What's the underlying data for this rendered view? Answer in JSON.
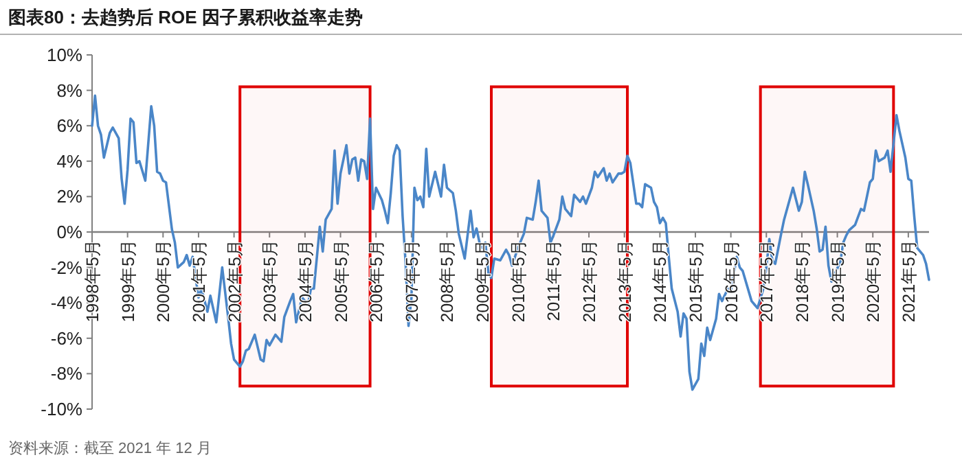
{
  "chart_data": {
    "type": "line",
    "title": "图表80：去趋势后 ROE 因子累积收益率走势",
    "annotations": [
      "资料来源：截至 2021 年 12 月"
    ],
    "x": [
      "1998-05",
      "1998-06",
      "1998-07",
      "1998-08",
      "1998-09",
      "1998-10",
      "1998-11",
      "1998-12",
      "1999-02",
      "1999-03",
      "1999-04",
      "1999-05",
      "1999-06",
      "1999-07",
      "1999-08",
      "1999-09",
      "1999-11",
      "2000-01",
      "2000-02",
      "2000-03",
      "2000-04",
      "2000-05",
      "2000-06",
      "2000-08",
      "2000-09",
      "2000-10",
      "2000-12",
      "2001-01",
      "2001-02",
      "2001-03",
      "2001-05",
      "2001-06",
      "2001-08",
      "2001-09",
      "2001-11",
      "2002-01",
      "2002-03",
      "2002-04",
      "2002-05",
      "2002-07",
      "2002-08",
      "2002-09",
      "2002-10",
      "2002-12",
      "2003-02",
      "2003-03",
      "2003-04",
      "2003-05",
      "2003-07",
      "2003-09",
      "2003-10",
      "2003-12",
      "2004-01",
      "2004-02",
      "2004-04",
      "2004-06",
      "2004-07",
      "2004-08",
      "2004-10",
      "2004-11",
      "2004-12",
      "2005-02",
      "2005-03",
      "2005-04",
      "2005-05",
      "2005-07",
      "2005-08",
      "2005-09",
      "2005-10",
      "2005-11",
      "2005-12",
      "2006-01",
      "2006-02",
      "2006-03",
      "2006-04",
      "2006-05",
      "2006-07",
      "2006-08",
      "2006-09",
      "2006-10",
      "2006-11",
      "2006-12",
      "2007-01",
      "2007-02",
      "2007-03",
      "2007-04",
      "2007-05",
      "2007-06",
      "2007-07",
      "2007-08",
      "2007-09",
      "2007-10",
      "2007-11",
      "2008-01",
      "2008-03",
      "2008-04",
      "2008-05",
      "2008-07",
      "2008-08",
      "2008-09",
      "2008-11",
      "2009-01",
      "2009-02",
      "2009-03",
      "2009-04",
      "2009-05",
      "2009-06",
      "2009-07",
      "2009-08",
      "2009-09",
      "2009-11",
      "2010-01",
      "2010-02",
      "2010-03",
      "2010-05",
      "2010-07",
      "2010-08",
      "2010-10",
      "2010-11",
      "2010-12",
      "2011-01",
      "2011-03",
      "2011-04",
      "2011-05",
      "2011-07",
      "2011-08",
      "2011-09",
      "2011-11",
      "2011-12",
      "2012-02",
      "2012-03",
      "2012-04",
      "2012-06",
      "2012-07",
      "2012-08",
      "2012-10",
      "2012-11",
      "2012-12",
      "2013-01",
      "2013-03",
      "2013-04",
      "2013-05",
      "2013-06",
      "2013-07",
      "2013-09",
      "2013-10",
      "2013-11",
      "2013-12",
      "2014-02",
      "2014-03",
      "2014-04",
      "2014-05",
      "2014-06",
      "2014-07",
      "2014-08",
      "2014-09",
      "2014-11",
      "2014-12",
      "2015-01",
      "2015-02",
      "2015-03",
      "2015-04",
      "2015-06",
      "2015-07",
      "2015-08",
      "2015-09",
      "2015-10",
      "2015-12",
      "2016-01",
      "2016-02",
      "2016-04",
      "2016-05",
      "2016-07",
      "2016-08",
      "2016-09",
      "2016-12",
      "2017-01",
      "2017-02",
      "2017-04",
      "2017-05",
      "2017-06",
      "2017-07",
      "2017-08",
      "2017-10",
      "2017-11",
      "2018-02",
      "2018-04",
      "2018-05",
      "2018-06",
      "2018-07",
      "2018-09",
      "2018-10",
      "2018-11",
      "2018-12",
      "2019-01",
      "2019-02",
      "2019-03",
      "2019-04",
      "2019-06",
      "2019-07",
      "2019-08",
      "2019-09",
      "2019-11",
      "2020-01",
      "2020-02",
      "2020-04",
      "2020-05",
      "2020-06",
      "2020-07",
      "2020-09",
      "2020-10",
      "2020-11",
      "2021-01",
      "2021-02",
      "2021-04",
      "2021-05",
      "2021-06",
      "2021-07",
      "2021-08",
      "2021-10",
      "2021-11",
      "2021-12"
    ],
    "series": [
      {
        "color": "#4a86c8",
        "values": [
          6.0,
          7.7,
          6.0,
          5.5,
          4.2,
          4.9,
          5.6,
          5.9,
          5.3,
          3.0,
          1.6,
          3.5,
          6.4,
          6.2,
          3.9,
          4.0,
          2.9,
          7.1,
          6.0,
          3.4,
          3.3,
          2.9,
          2.8,
          0.15,
          -0.6,
          -2.0,
          -1.7,
          -1.3,
          -1.9,
          -1.4,
          -3.7,
          -3.2,
          -4.5,
          -3.6,
          -5.1,
          -2.0,
          -4.8,
          -6.3,
          -7.2,
          -7.6,
          -7.3,
          -6.7,
          -6.6,
          -5.8,
          -7.2,
          -7.3,
          -6.1,
          -6.4,
          -5.8,
          -6.2,
          -4.8,
          -3.9,
          -3.5,
          -5.1,
          -3.7,
          -4.1,
          -3.2,
          -3.2,
          0.3,
          -1.1,
          0.7,
          1.3,
          4.6,
          1.6,
          3.3,
          4.9,
          3.3,
          4.1,
          4.2,
          2.9,
          4.1,
          4.0,
          3.0,
          6.4,
          1.3,
          2.5,
          1.8,
          1.2,
          0.5,
          2.2,
          4.3,
          4.9,
          4.6,
          0.9,
          -1.7,
          -5.3,
          -3.7,
          2.5,
          1.8,
          2.0,
          1.4,
          4.7,
          2.0,
          3.4,
          2.0,
          3.8,
          2.5,
          2.2,
          1.2,
          -0.1,
          -1.5,
          1.2,
          -0.3,
          0.2,
          -0.6,
          -0.9,
          -0.6,
          -2.3,
          -2.6,
          -1.5,
          -1.6,
          -1.0,
          -1.3,
          -1.9,
          -0.9,
          -0.1,
          0.8,
          0.7,
          1.7,
          2.9,
          1.2,
          0.8,
          -0.6,
          -0.2,
          0.7,
          2.0,
          1.3,
          0.9,
          2.1,
          1.7,
          2.0,
          1.6,
          2.5,
          3.4,
          3.1,
          3.6,
          2.9,
          3.3,
          2.8,
          3.3,
          3.3,
          3.4,
          4.3,
          3.9,
          1.6,
          1.6,
          1.4,
          2.7,
          2.5,
          1.7,
          1.4,
          0.5,
          0.8,
          0.5,
          -1.4,
          -3.2,
          -4.5,
          -5.9,
          -4.6,
          -4.9,
          -7.9,
          -8.9,
          -8.3,
          -6.3,
          -7.0,
          -5.4,
          -6.1,
          -4.9,
          -3.5,
          -3.9,
          -3.2,
          -3.3,
          -1.4,
          -2.0,
          -2.2,
          -3.9,
          -4.1,
          -4.3,
          -3.2,
          -2.0,
          -0.4,
          -1.6,
          -1.8,
          -0.1,
          0.7,
          2.5,
          1.2,
          1.7,
          3.4,
          2.7,
          1.2,
          0.2,
          -1.1,
          -1.0,
          0.3,
          -1.9,
          -2.8,
          -2.4,
          -1.7,
          -0.6,
          -0.2,
          0.1,
          0.4,
          1.3,
          1.2,
          2.8,
          3.0,
          4.6,
          4.0,
          4.2,
          4.6,
          3.4,
          6.6,
          5.7,
          4.2,
          3.0,
          2.9,
          0.9,
          -0.9,
          -1.3,
          -1.8,
          -2.7
        ]
      }
    ],
    "xlim": [
      "1998-05",
      "2021-12"
    ],
    "xticks": [
      {
        "value": "1998-05",
        "label": "1998年5月"
      },
      {
        "value": "1999-05",
        "label": "1999年5月"
      },
      {
        "value": "2000-05",
        "label": "2000年5月"
      },
      {
        "value": "2001-05",
        "label": "2001年5月"
      },
      {
        "value": "2002-05",
        "label": "2002年5月"
      },
      {
        "value": "2003-05",
        "label": "2003年5月"
      },
      {
        "value": "2004-05",
        "label": "2004年5月"
      },
      {
        "value": "2005-05",
        "label": "2005年5月"
      },
      {
        "value": "2006-05",
        "label": "2006年5月"
      },
      {
        "value": "2007-05",
        "label": "2007年5月"
      },
      {
        "value": "2008-05",
        "label": "2008年5月"
      },
      {
        "value": "2009-05",
        "label": "2009年5月"
      },
      {
        "value": "2010-05",
        "label": "2010年5月"
      },
      {
        "value": "2011-05",
        "label": "2011年5月"
      },
      {
        "value": "2012-05",
        "label": "2012年5月"
      },
      {
        "value": "2013-05",
        "label": "2013年5月"
      },
      {
        "value": "2014-05",
        "label": "2014年5月"
      },
      {
        "value": "2015-05",
        "label": "2015年5月"
      },
      {
        "value": "2016-05",
        "label": "2016年5月"
      },
      {
        "value": "2017-05",
        "label": "2017年5月"
      },
      {
        "value": "2018-05",
        "label": "2018年5月"
      },
      {
        "value": "2019-05",
        "label": "2019年5月"
      },
      {
        "value": "2020-05",
        "label": "2020年5月"
      },
      {
        "value": "2021-05",
        "label": "2021年5月"
      }
    ],
    "ylim": [
      -10,
      10
    ],
    "yticks": [
      {
        "value": -10,
        "label": "-10%"
      },
      {
        "value": -8,
        "label": "-8%"
      },
      {
        "value": -6,
        "label": "-6%"
      },
      {
        "value": -4,
        "label": "-4%"
      },
      {
        "value": -2,
        "label": "-2%"
      },
      {
        "value": 0,
        "label": "0%"
      },
      {
        "value": 2,
        "label": "2%"
      },
      {
        "value": 4,
        "label": "4%"
      },
      {
        "value": 6,
        "label": "6%"
      },
      {
        "value": 8,
        "label": "8%"
      },
      {
        "value": 10,
        "label": "10%"
      }
    ],
    "bands": [
      {
        "axis": "x",
        "from": "2002-07",
        "to": "2006-03",
        "color": "#e00000"
      },
      {
        "axis": "x",
        "from": "2009-08",
        "to": "2013-06",
        "color": "#e00000"
      },
      {
        "axis": "x",
        "from": "2017-03",
        "to": "2020-12",
        "color": "#e00000"
      }
    ]
  }
}
